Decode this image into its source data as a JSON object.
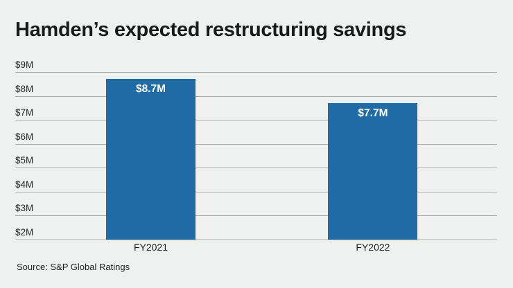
{
  "header": {
    "title": "Hamden’s expected restructuring savings"
  },
  "chart_data": {
    "type": "bar",
    "title": "Hamden’s expected restructuring savings",
    "categories": [
      "FY2021",
      "FY2022"
    ],
    "values": [
      8.7,
      7.7
    ],
    "bar_labels": [
      "$8.7M",
      "$7.7M"
    ],
    "xlabel": "",
    "ylabel": "",
    "ylim": [
      2,
      9
    ],
    "yticks": [
      {
        "value": 9,
        "label": "$9M"
      },
      {
        "value": 8,
        "label": "$8M"
      },
      {
        "value": 7,
        "label": "$7M"
      },
      {
        "value": 6,
        "label": "$6M"
      },
      {
        "value": 5,
        "label": "$5M"
      },
      {
        "value": 4,
        "label": "$4M"
      },
      {
        "value": 3,
        "label": "$3M"
      },
      {
        "value": 2,
        "label": "$2M"
      }
    ],
    "grid": "horizontal",
    "legend": "none"
  },
  "footer": {
    "source": "Source: S&P Global Ratings"
  },
  "colors": {
    "background": "#eff1f0",
    "bar": "#1e6ba6",
    "bar_label_text": "#ffffff",
    "gridline": "#a6a9a9",
    "title_text": "#191a1a",
    "tick_text": "#262727"
  }
}
